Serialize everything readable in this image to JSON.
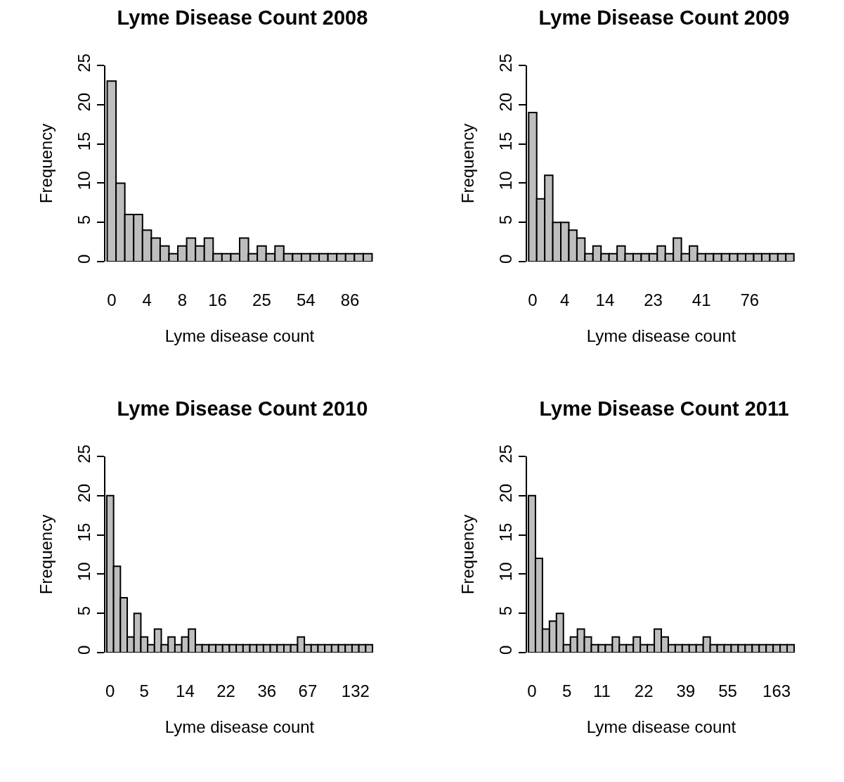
{
  "chart_data": [
    {
      "type": "bar",
      "title": "Lyme Disease Count 2008",
      "xlabel": "Lyme disease count",
      "ylabel": "Frequency",
      "color": "#bebebe",
      "categories": [
        "0",
        null,
        null,
        null,
        "4",
        null,
        null,
        null,
        "8",
        null,
        null,
        null,
        "16",
        null,
        null,
        null,
        null,
        "25",
        null,
        null,
        null,
        null,
        "54",
        null,
        null,
        null,
        null,
        "86",
        null,
        null
      ],
      "values": [
        23,
        10,
        6,
        6,
        4,
        3,
        2,
        1,
        2,
        3,
        2,
        3,
        1,
        1,
        1,
        3,
        1,
        2,
        1,
        2,
        1,
        1,
        1,
        1,
        1,
        1,
        1,
        1,
        1,
        1
      ],
      "ylim": [
        0,
        25
      ],
      "yticks": [
        0,
        5,
        10,
        15,
        20,
        25
      ]
    },
    {
      "type": "bar",
      "title": "Lyme Disease Count 2009",
      "xlabel": "Lyme disease count",
      "ylabel": "Frequency",
      "color": "#bebebe",
      "categories": [
        "0",
        null,
        null,
        null,
        "4",
        null,
        null,
        null,
        null,
        "14",
        null,
        null,
        null,
        null,
        null,
        "23",
        null,
        null,
        null,
        null,
        null,
        "41",
        null,
        null,
        null,
        null,
        null,
        "76",
        null,
        null,
        null,
        null,
        null
      ],
      "values": [
        19,
        8,
        11,
        5,
        5,
        4,
        3,
        1,
        2,
        1,
        1,
        2,
        1,
        1,
        1,
        1,
        2,
        1,
        3,
        1,
        2,
        1,
        1,
        1,
        1,
        1,
        1,
        1,
        1,
        1,
        1,
        1,
        1
      ],
      "ylim": [
        0,
        25
      ],
      "yticks": [
        0,
        5,
        10,
        15,
        20,
        25
      ]
    },
    {
      "type": "bar",
      "title": "Lyme Disease Count 2010",
      "xlabel": "Lyme disease count",
      "ylabel": "Frequency",
      "color": "#bebebe",
      "categories": [
        "0",
        null,
        null,
        null,
        null,
        "5",
        null,
        null,
        null,
        null,
        null,
        "14",
        null,
        null,
        null,
        null,
        null,
        "22",
        null,
        null,
        null,
        null,
        null,
        "36",
        null,
        null,
        null,
        null,
        null,
        "67",
        null,
        null,
        null,
        null,
        null,
        null,
        "132",
        null,
        null
      ],
      "values": [
        20,
        11,
        7,
        2,
        5,
        2,
        1,
        3,
        1,
        2,
        1,
        2,
        3,
        1,
        1,
        1,
        1,
        1,
        1,
        1,
        1,
        1,
        1,
        1,
        1,
        1,
        1,
        1,
        2,
        1,
        1,
        1,
        1,
        1,
        1,
        1,
        1,
        1,
        1
      ],
      "ylim": [
        0,
        25
      ],
      "yticks": [
        0,
        5,
        10,
        15,
        20,
        25
      ]
    },
    {
      "type": "bar",
      "title": "Lyme Disease Count 2011",
      "xlabel": "Lyme disease count",
      "ylabel": "Frequency",
      "color": "#bebebe",
      "categories": [
        "0",
        null,
        null,
        null,
        null,
        "5",
        null,
        null,
        null,
        null,
        "11",
        null,
        null,
        null,
        null,
        null,
        "22",
        null,
        null,
        null,
        null,
        null,
        "39",
        null,
        null,
        null,
        null,
        null,
        "55",
        null,
        null,
        null,
        null,
        null,
        null,
        "163",
        null,
        null
      ],
      "values": [
        20,
        12,
        3,
        4,
        5,
        1,
        2,
        3,
        2,
        1,
        1,
        1,
        2,
        1,
        1,
        2,
        1,
        1,
        3,
        2,
        1,
        1,
        1,
        1,
        1,
        2,
        1,
        1,
        1,
        1,
        1,
        1,
        1,
        1,
        1,
        1,
        1,
        1
      ],
      "ylim": [
        0,
        25
      ],
      "yticks": [
        0,
        5,
        10,
        15,
        20,
        25
      ]
    }
  ]
}
